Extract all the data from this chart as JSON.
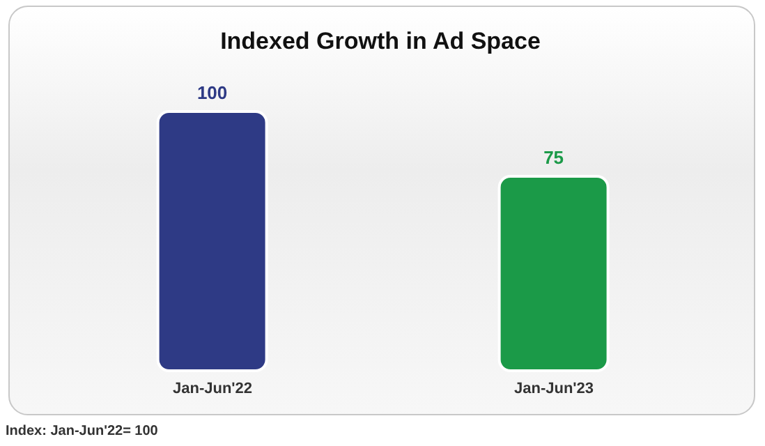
{
  "chart_data": {
    "type": "bar",
    "title": "Indexed Growth in Ad Space",
    "categories": [
      "Jan-Jun'22",
      "Jan-Jun'23"
    ],
    "values": [
      100,
      75
    ],
    "colors": [
      "#2e3a85",
      "#1b9a48"
    ],
    "data_labels": true,
    "tick_labels": "x",
    "annotations": [
      "Index: Jan-Jun'22= 100"
    ]
  }
}
